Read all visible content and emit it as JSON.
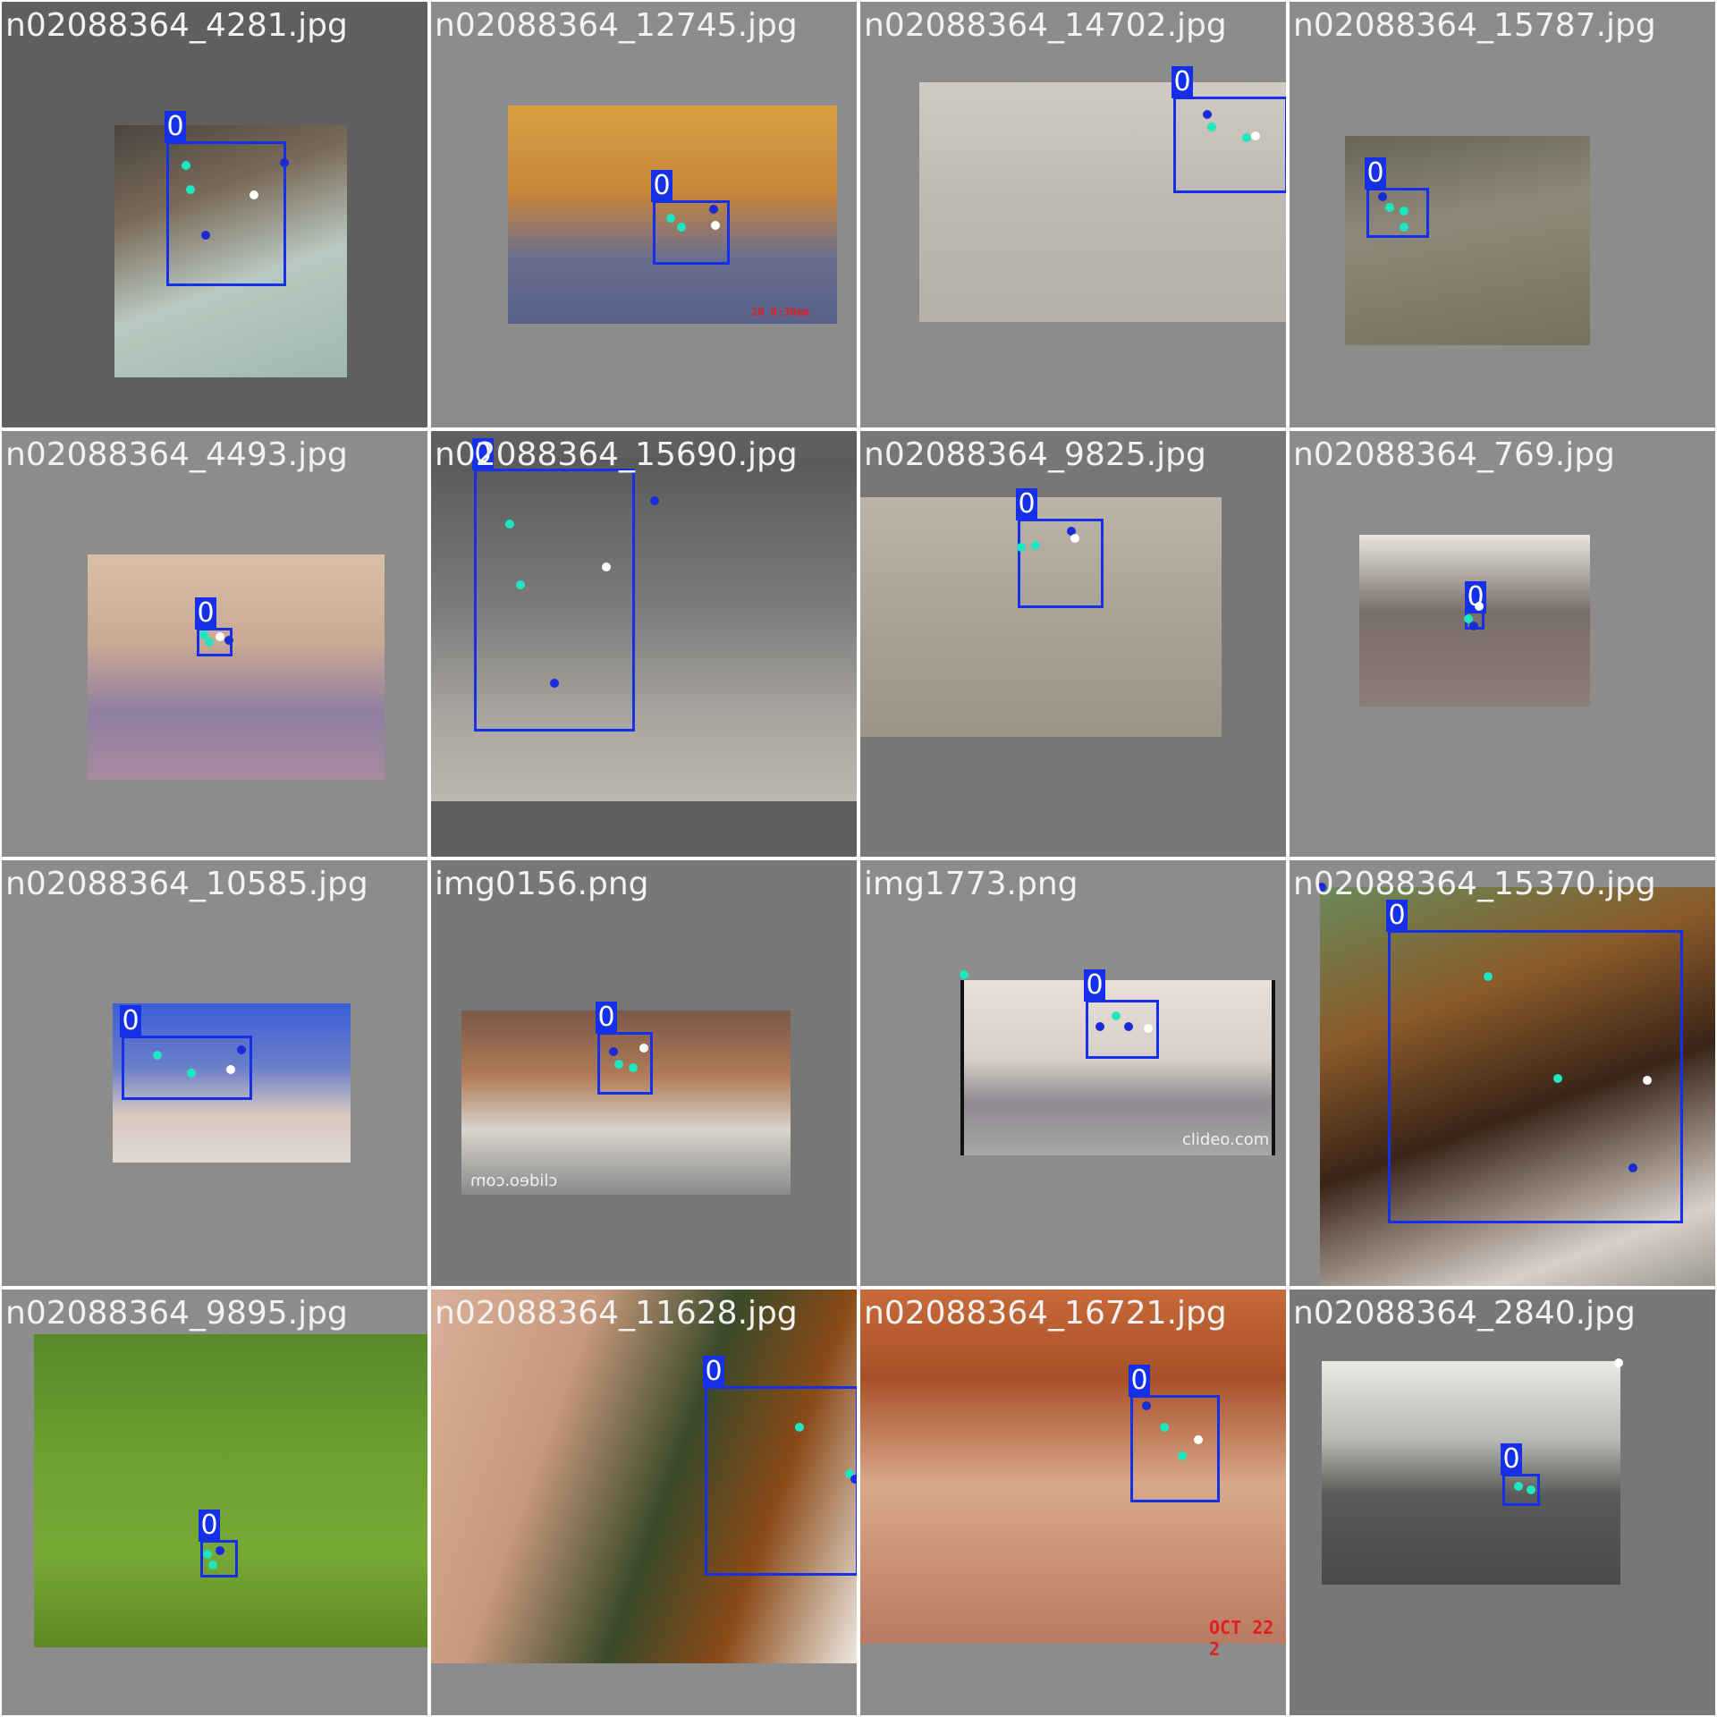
{
  "tiles": [
    {
      "filename": "n02088364_4281.jpg",
      "label": "0"
    },
    {
      "filename": "n02088364_12745.jpg",
      "label": "0",
      "timestamp": "20 0:30am"
    },
    {
      "filename": "n02088364_14702.jpg",
      "label": "0"
    },
    {
      "filename": "n02088364_15787.jpg",
      "label": "0"
    },
    {
      "filename": "n02088364_4493.jpg",
      "label": "0"
    },
    {
      "filename": "n02088364_15690.jpg",
      "label": "0"
    },
    {
      "filename": "n02088364_9825.jpg",
      "label": "0"
    },
    {
      "filename": "n02088364_769.jpg",
      "label": "0"
    },
    {
      "filename": "n02088364_10585.jpg",
      "label": "0"
    },
    {
      "filename": "img0156.png",
      "label": "0",
      "watermark": "clideo.com"
    },
    {
      "filename": "img1773.png",
      "label": "0",
      "watermark": "clideo.com"
    },
    {
      "filename": "n02088364_15370.jpg",
      "label": "0"
    },
    {
      "filename": "n02088364_9895.jpg",
      "label": "0"
    },
    {
      "filename": "n02088364_11628.jpg",
      "label": "0"
    },
    {
      "filename": "n02088364_16721.jpg",
      "label": "0",
      "timestamp": "OCT 22 2"
    },
    {
      "filename": "n02088364_2840.jpg",
      "label": "0"
    }
  ],
  "colors": {
    "bbox": "#1530e8",
    "keypoint_cyan": "#1ee6c0",
    "keypoint_white": "#ffffff",
    "keypoint_blue": "#1a2bd8"
  }
}
